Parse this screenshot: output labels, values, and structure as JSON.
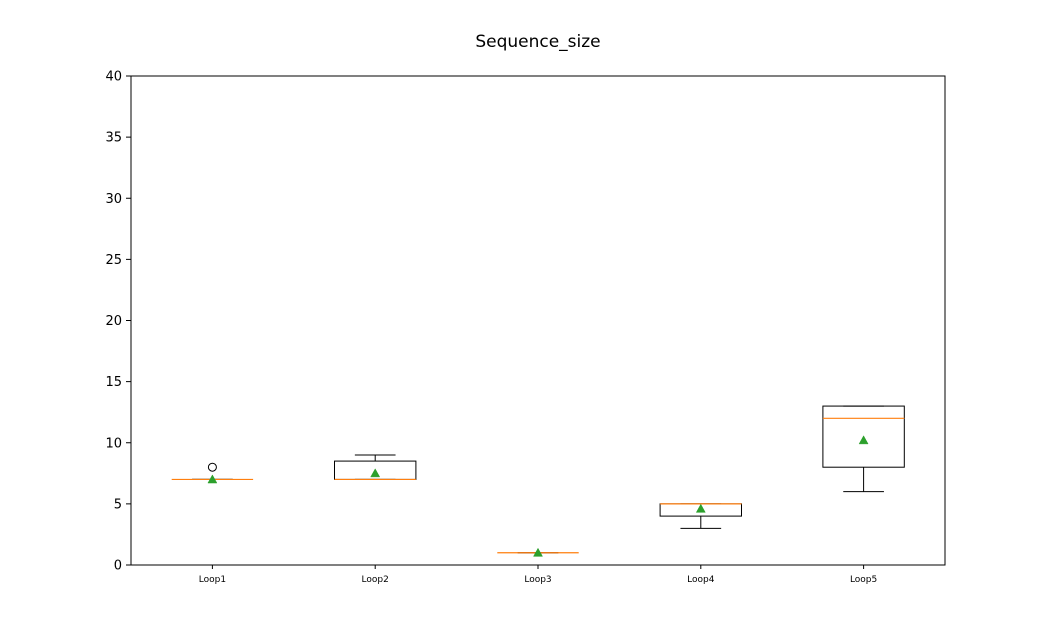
{
  "chart_data": {
    "type": "box",
    "title": "Sequence_size",
    "xlabel": "",
    "ylabel": "",
    "ylim": [
      0,
      40
    ],
    "yticks": [
      0,
      5,
      10,
      15,
      20,
      25,
      30,
      35,
      40
    ],
    "grid": false,
    "legend": "none",
    "categories": [
      "Loop1",
      "Loop2",
      "Loop3",
      "Loop4",
      "Loop5"
    ],
    "boxes": [
      {
        "whisker_low": 7,
        "q1": 7,
        "median": 7,
        "q3": 7,
        "whisker_high": 7,
        "mean": 7.0,
        "outliers": [
          8
        ]
      },
      {
        "whisker_low": 7,
        "q1": 7,
        "median": 7,
        "q3": 8.5,
        "whisker_high": 9,
        "mean": 7.5,
        "outliers": []
      },
      {
        "whisker_low": 1,
        "q1": 1,
        "median": 1,
        "q3": 1,
        "whisker_high": 1,
        "mean": 1.0,
        "outliers": []
      },
      {
        "whisker_low": 3,
        "q1": 4,
        "median": 5,
        "q3": 5,
        "whisker_high": 5,
        "mean": 4.6,
        "outliers": []
      },
      {
        "whisker_low": 6,
        "q1": 8,
        "median": 12,
        "q3": 13,
        "whisker_high": 13,
        "mean": 10.2,
        "outliers": []
      }
    ],
    "colors": {
      "box": "#000000",
      "median": "#ff7f0e",
      "mean": "#2ca02c",
      "outlier": "#000000"
    }
  }
}
